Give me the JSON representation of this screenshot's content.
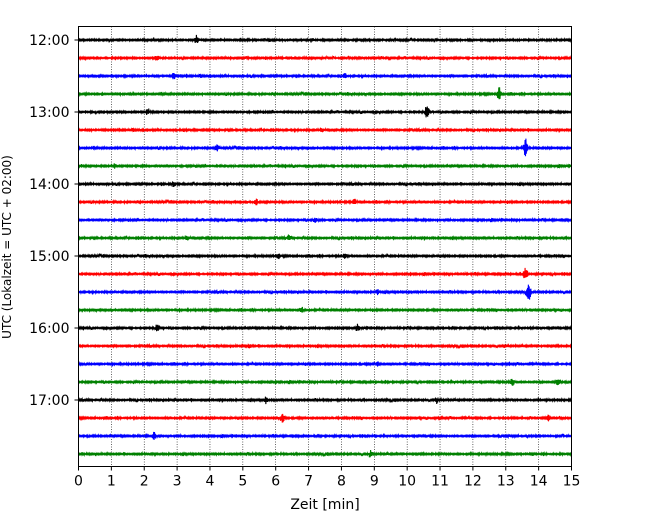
{
  "chart_data": {
    "type": "line",
    "xlabel": "Zeit  [min]",
    "ylabel": "UTC (Lokalzeit = UTC + 02:00)",
    "xlim": [
      0,
      15
    ],
    "x_ticks": [
      "0",
      "1",
      "2",
      "3",
      "4",
      "5",
      "6",
      "7",
      "8",
      "9",
      "10",
      "11",
      "12",
      "13",
      "14",
      "15"
    ],
    "y_ticks": [
      {
        "label": "12:00",
        "trace": 0
      },
      {
        "label": "13:00",
        "trace": 4
      },
      {
        "label": "14:00",
        "trace": 8
      },
      {
        "label": "15:00",
        "trace": 12
      },
      {
        "label": "16:00",
        "trace": 16
      },
      {
        "label": "17:00",
        "trace": 20
      }
    ],
    "grid_x": true,
    "trace_colors": [
      "#000000",
      "#ff0000",
      "#0000ff",
      "#008000"
    ],
    "trace_count": 24,
    "traces": [
      {
        "start": "12:00",
        "bursts": [
          {
            "t": 3.6,
            "a": 1.6
          },
          {
            "t": 7.1,
            "a": 0.9
          }
        ]
      },
      {
        "start": "12:15",
        "bursts": [
          {
            "t": 2.4,
            "a": 0.9
          }
        ]
      },
      {
        "start": "12:30",
        "bursts": [
          {
            "t": 2.9,
            "a": 1.1
          },
          {
            "t": 8.1,
            "a": 0.9
          }
        ]
      },
      {
        "start": "12:45",
        "bursts": [
          {
            "t": 12.8,
            "a": 2.2
          }
        ]
      },
      {
        "start": "13:00",
        "bursts": [
          {
            "t": 2.1,
            "a": 1.0
          },
          {
            "t": 10.6,
            "a": 2.0
          }
        ]
      },
      {
        "start": "13:15",
        "bursts": [
          {
            "t": 7.4,
            "a": 0.9
          }
        ]
      },
      {
        "start": "13:30",
        "bursts": [
          {
            "t": 4.2,
            "a": 1.2
          },
          {
            "t": 13.6,
            "a": 3.2
          }
        ]
      },
      {
        "start": "13:45",
        "bursts": [
          {
            "t": 1.1,
            "a": 0.9
          }
        ]
      },
      {
        "start": "14:00",
        "bursts": [
          {
            "t": 2.9,
            "a": 1.0
          }
        ]
      },
      {
        "start": "14:15",
        "bursts": [
          {
            "t": 5.4,
            "a": 1.1
          },
          {
            "t": 8.4,
            "a": 1.0
          }
        ]
      },
      {
        "start": "14:30",
        "bursts": [
          {
            "t": 7.2,
            "a": 1.0
          }
        ]
      },
      {
        "start": "14:45",
        "bursts": [
          {
            "t": 3.3,
            "a": 1.0
          },
          {
            "t": 6.4,
            "a": 0.9
          }
        ]
      },
      {
        "start": "15:00",
        "bursts": [
          {
            "t": 6.1,
            "a": 0.9
          },
          {
            "t": 8.1,
            "a": 0.9
          }
        ]
      },
      {
        "start": "15:15",
        "bursts": [
          {
            "t": 13.6,
            "a": 2.6
          }
        ]
      },
      {
        "start": "15:30",
        "bursts": [
          {
            "t": 9.1,
            "a": 1.0
          },
          {
            "t": 13.7,
            "a": 3.0
          }
        ]
      },
      {
        "start": "15:45",
        "bursts": [
          {
            "t": 6.8,
            "a": 0.9
          }
        ]
      },
      {
        "start": "16:00",
        "bursts": [
          {
            "t": 2.4,
            "a": 1.1
          },
          {
            "t": 8.5,
            "a": 0.9
          }
        ]
      },
      {
        "start": "16:15",
        "bursts": [
          {
            "t": 5.2,
            "a": 0.8
          }
        ]
      },
      {
        "start": "16:30",
        "bursts": [
          {
            "t": 9.1,
            "a": 1.0
          }
        ]
      },
      {
        "start": "16:45",
        "bursts": [
          {
            "t": 13.2,
            "a": 1.3
          },
          {
            "t": 14.6,
            "a": 1.6
          }
        ]
      },
      {
        "start": "17:00",
        "bursts": [
          {
            "t": 5.7,
            "a": 1.0
          },
          {
            "t": 10.9,
            "a": 0.9
          }
        ]
      },
      {
        "start": "17:15",
        "bursts": [
          {
            "t": 6.2,
            "a": 1.5
          },
          {
            "t": 14.3,
            "a": 1.0
          }
        ]
      },
      {
        "start": "17:30",
        "bursts": [
          {
            "t": 2.3,
            "a": 1.2
          }
        ]
      },
      {
        "start": "17:45",
        "bursts": [
          {
            "t": 8.9,
            "a": 1.2
          }
        ]
      }
    ]
  }
}
